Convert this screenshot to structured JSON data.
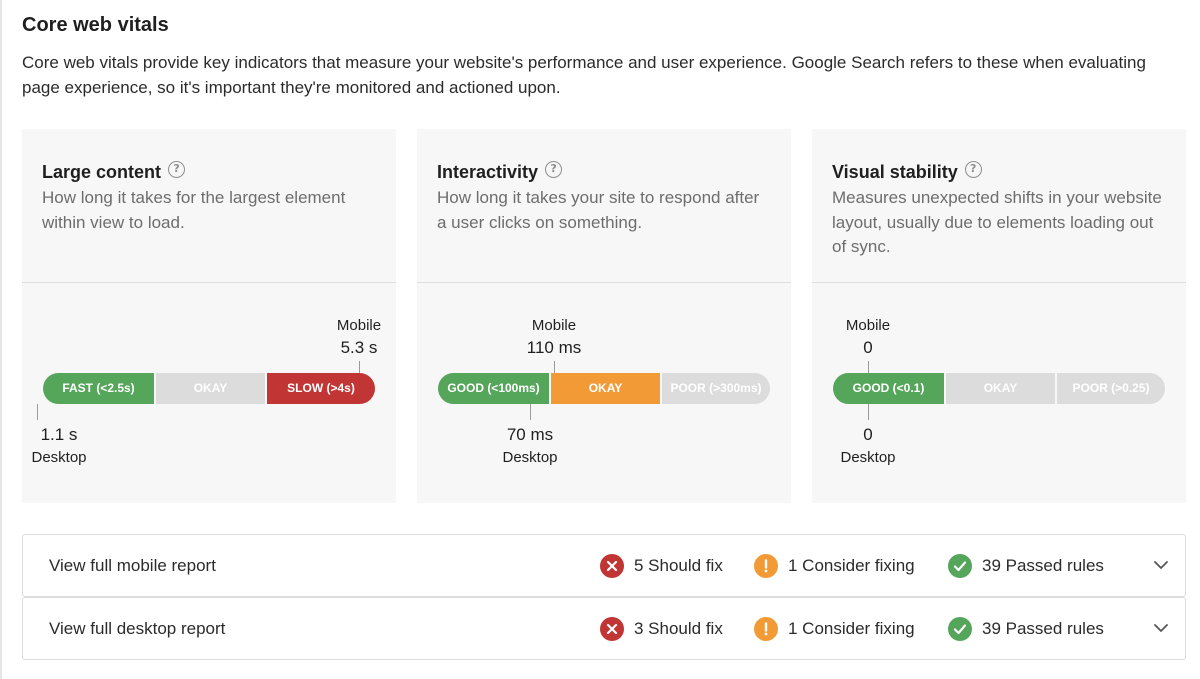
{
  "header": {
    "title": "Core web vitals",
    "description": "Core web vitals provide key indicators that measure your website's performance and user experience. Google Search refers to these when evaluating page experience, so it's important they're monitored and actioned upon."
  },
  "colors": {
    "good": "#55a55a",
    "needs_improvement": "#f29b36",
    "poor": "#c13634",
    "inactive": "#dcdcdc"
  },
  "cards": [
    {
      "title": "Large content",
      "description": "How long it takes for the largest element within view to load.",
      "segments": [
        "FAST (<2.5s)",
        "OKAY",
        "SLOW (>4s)"
      ],
      "active_segment": "SLOW (>4s)",
      "mobile": {
        "label": "Mobile",
        "value": "5.3 s"
      },
      "desktop": {
        "label": "Desktop",
        "value": "1.1 s"
      }
    },
    {
      "title": "Interactivity",
      "description": "How long it takes your site to respond after a user clicks on something.",
      "segments": [
        "GOOD (<100ms)",
        "OKAY",
        "POOR (>300ms)"
      ],
      "active_segment": "OKAY",
      "mobile": {
        "label": "Mobile",
        "value": "110 ms"
      },
      "desktop": {
        "label": "Desktop",
        "value": "70 ms"
      }
    },
    {
      "title": "Visual stability",
      "description": "Measures unexpected shifts in your website layout, usually due to elements loading out of sync.",
      "segments": [
        "GOOD (<0.1)",
        "OKAY",
        "POOR (>0.25)"
      ],
      "active_segment": "GOOD (<0.1)",
      "mobile": {
        "label": "Mobile",
        "value": "0"
      },
      "desktop": {
        "label": "Desktop",
        "value": "0"
      }
    }
  ],
  "reports": [
    {
      "label": "View full mobile report",
      "should_fix": "5 Should fix",
      "consider_fixing": "1 Consider fixing",
      "passed": "39 Passed rules",
      "icons": [
        "x-circle-icon",
        "exclamation-circle-icon",
        "check-circle-icon",
        "chevron-down-icon"
      ]
    },
    {
      "label": "View full desktop report",
      "should_fix": "3 Should fix",
      "consider_fixing": "1 Consider fixing",
      "passed": "39 Passed rules",
      "icons": [
        "x-circle-icon",
        "exclamation-circle-icon",
        "check-circle-icon",
        "chevron-down-icon"
      ]
    }
  ]
}
